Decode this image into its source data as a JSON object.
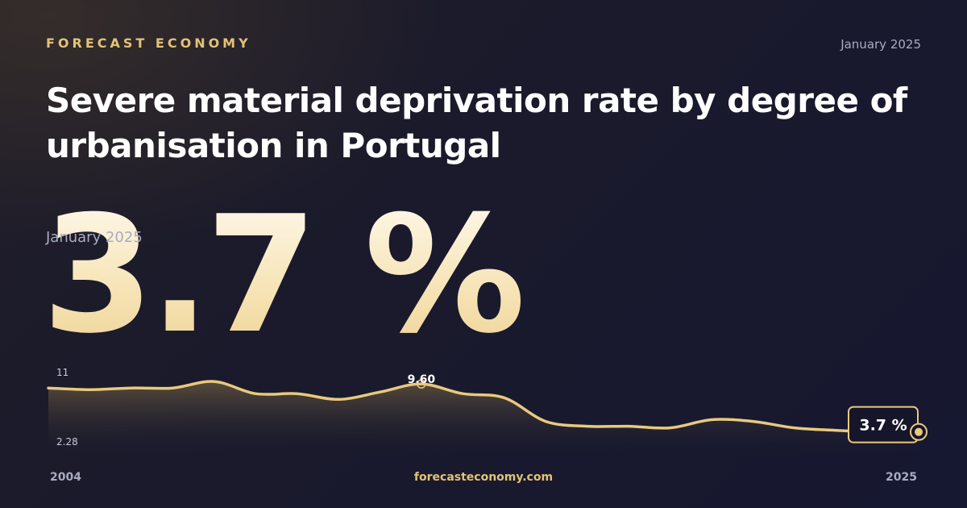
{
  "brand": "FORECAST ECONOMY",
  "date": "January 2025",
  "title": "Severe material deprivation rate by degree of urbanisation in Portugal",
  "headline": {
    "value": "3.7 %",
    "date": "January 2025"
  },
  "footer": {
    "site": "forecasteconomy.com",
    "x_start": "2004",
    "x_end": "2025"
  },
  "colors": {
    "accent": "#e3c277",
    "line": "#e9c97e",
    "background": "#1a1a2c",
    "text_muted": "#a9abc1"
  },
  "chart_data": {
    "type": "area",
    "title": "Severe material deprivation rate by degree of urbanisation in Portugal",
    "xlabel": "",
    "ylabel": "",
    "x_range": [
      2004,
      2025
    ],
    "ylim": [
      2.28,
      11
    ],
    "y_tick_labels": [
      "11",
      "2.28"
    ],
    "x_tick_labels": [
      "2004",
      "2025"
    ],
    "grid": false,
    "legend": "none",
    "series": [
      {
        "x": [
          2004,
          2005,
          2006,
          2007,
          2008,
          2009,
          2010,
          2011,
          2012,
          2013,
          2014,
          2015,
          2016,
          2017,
          2018,
          2019,
          2020,
          2021,
          2022,
          2023,
          2024,
          2025
        ],
        "values": [
          9.1,
          8.9,
          9.1,
          9.1,
          9.9,
          8.4,
          8.4,
          7.7,
          8.6,
          9.6,
          8.4,
          7.9,
          5.0,
          4.4,
          4.4,
          4.2,
          5.2,
          5.0,
          4.2,
          3.9,
          3.7,
          3.7
        ]
      }
    ],
    "annotations": [
      {
        "label": "9.60",
        "x": 2013,
        "y": 9.6
      },
      {
        "label": "3.7 %",
        "x": 2025,
        "y": 3.7
      }
    ]
  }
}
